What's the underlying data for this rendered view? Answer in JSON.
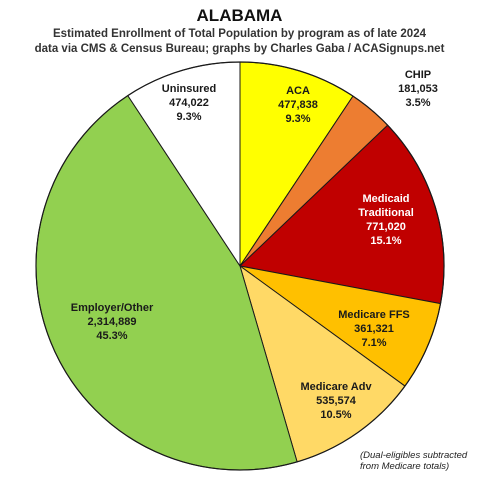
{
  "chart_data": {
    "type": "pie",
    "title": "ALABAMA",
    "subtitle_line1": "Estimated Enrollment of Total Population by program as of late 2024",
    "subtitle_line2": "data via CMS & Census Bureau; graphs by Charles Gaba / ACASignups.net",
    "slices": [
      {
        "name": "ACA",
        "value": 477838,
        "value_label": "477,838",
        "percent_label": "9.3%",
        "color": "#ffff00"
      },
      {
        "name": "CHIP",
        "value": 181053,
        "value_label": "181,053",
        "percent_label": "3.5%",
        "color": "#ed7d31"
      },
      {
        "name": "Medicaid Traditional",
        "name_lines": [
          "Medicaid",
          "Traditional"
        ],
        "value": 771020,
        "value_label": "771,020",
        "percent_label": "15.1%",
        "color": "#c00000"
      },
      {
        "name": "Medicare FFS",
        "value": 361321,
        "value_label": "361,321",
        "percent_label": "7.1%",
        "color": "#ffc000"
      },
      {
        "name": "Medicare Adv",
        "value": 535574,
        "value_label": "535,574",
        "percent_label": "10.5%",
        "color": "#ffd966"
      },
      {
        "name": "Employer/Other",
        "value": 2314889,
        "value_label": "2,314,889",
        "percent_label": "45.3%",
        "color": "#92d050"
      },
      {
        "name": "Uninsured",
        "value": 474022,
        "value_label": "474,022",
        "percent_label": "9.3%",
        "color": "#ffffff"
      }
    ],
    "footnote_lines": [
      "(Dual-eligibles subtracted",
      "from Medicare totals)"
    ]
  }
}
